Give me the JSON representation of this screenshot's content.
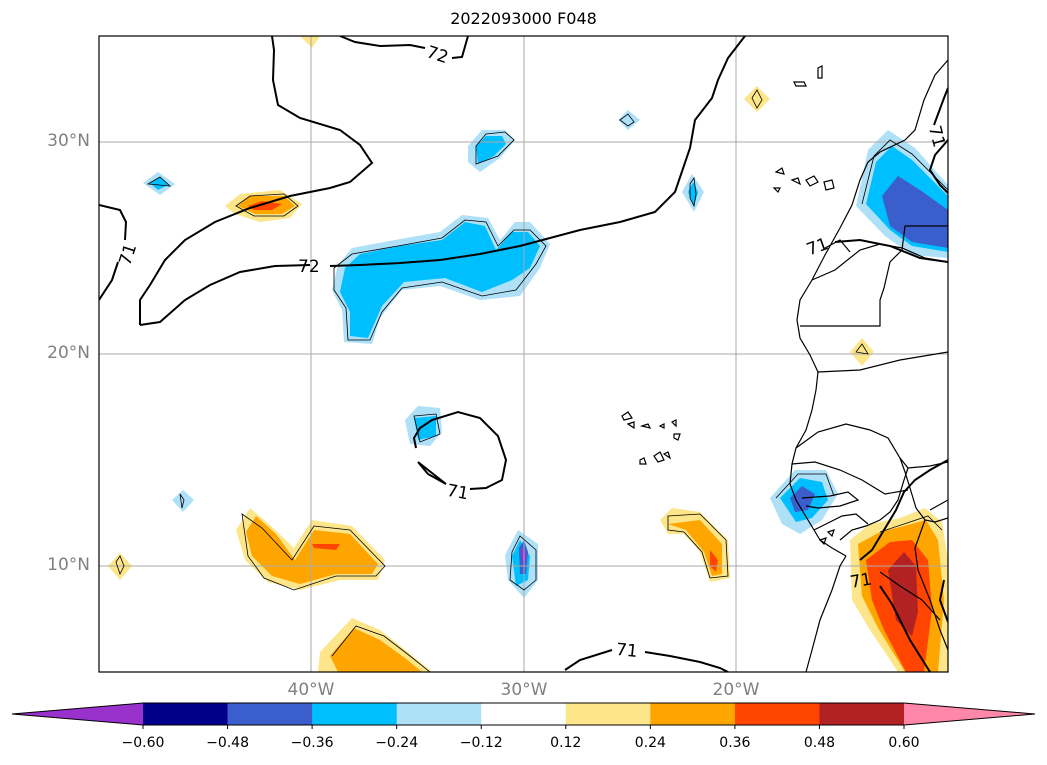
{
  "map": {
    "title": "2022093000 F048",
    "extent": {
      "lon_min": -50,
      "lon_max": -10,
      "lat_min": 5,
      "lat_max": 35
    },
    "lat_ticks": [
      {
        "value": 30,
        "label": "30°N"
      },
      {
        "value": 20,
        "label": "20°N"
      },
      {
        "value": 10,
        "label": "10°N"
      }
    ],
    "lon_ticks": [
      {
        "value": -40,
        "label": "40°W"
      },
      {
        "value": -30,
        "label": "30°W"
      },
      {
        "value": -20,
        "label": "20°W"
      }
    ],
    "gridlines": true,
    "contour_labels": [
      "72",
      "71",
      "72",
      "71",
      "71",
      "71",
      "71",
      "71"
    ],
    "fill_colors": {
      "light_blue": "#aee0f8",
      "cyan": "#00bfff",
      "blue": "#3a5fcd",
      "purple": "#9932cc",
      "yellow": "#fde68a",
      "orange": "#ffa500",
      "red_orange": "#ff4500",
      "dark_red": "#b22222"
    }
  },
  "colorbar": {
    "ticks": [
      "−0.60",
      "−0.48",
      "−0.36",
      "−0.24",
      "−0.12",
      "0.12",
      "0.24",
      "0.36",
      "0.48",
      "0.60"
    ],
    "colors": [
      "#9932cc",
      "#00008b",
      "#3a5fcd",
      "#00bfff",
      "#aee0f8",
      "#ffffff",
      "#fde68a",
      "#ffa500",
      "#ff4500",
      "#b22222",
      "#ff88aa"
    ],
    "extend": "both"
  }
}
